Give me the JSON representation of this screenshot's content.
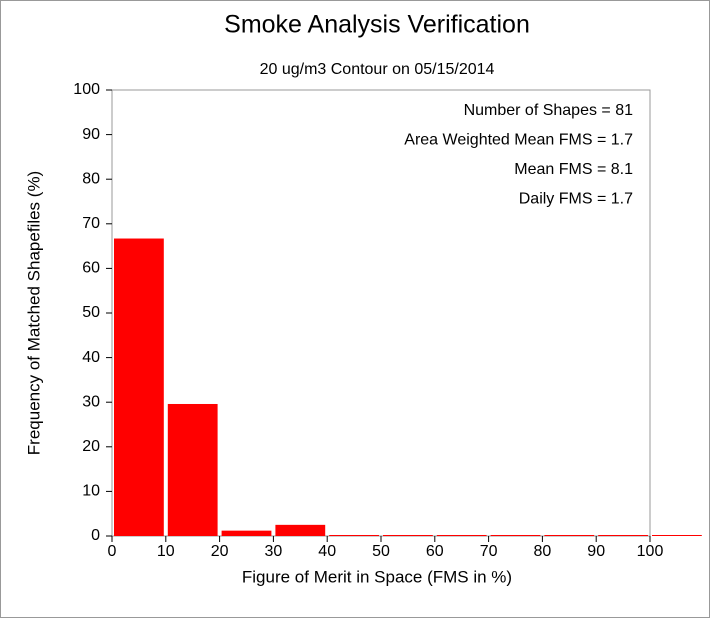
{
  "chart_data": {
    "type": "histogram",
    "title": "Smoke Analysis Verification",
    "subtitle": "20 ug/m3 Contour on 05/15/2014",
    "xlabel": "Figure of Merit in Space (FMS in %)",
    "ylabel": "Frequency of Matched Shapefiles (%)",
    "bins": [
      0,
      10,
      20,
      30,
      40,
      50,
      60,
      70,
      80,
      90,
      100,
      110
    ],
    "values": [
      66.7,
      29.6,
      1.2,
      2.5,
      0,
      0,
      0,
      0,
      0,
      0,
      0
    ],
    "color": "#ff0000",
    "xlim": [
      0,
      100
    ],
    "xticks": [
      0,
      10,
      20,
      30,
      40,
      50,
      60,
      70,
      80,
      90,
      100
    ],
    "ylim": [
      0,
      100
    ],
    "yticks": [
      0,
      10,
      20,
      30,
      40,
      50,
      60,
      70,
      80,
      90,
      100
    ],
    "annotations": [
      "Number of Shapes = 81",
      "Area Weighted Mean FMS = 1.7",
      "Mean FMS = 8.1",
      "Daily FMS = 1.7"
    ]
  }
}
